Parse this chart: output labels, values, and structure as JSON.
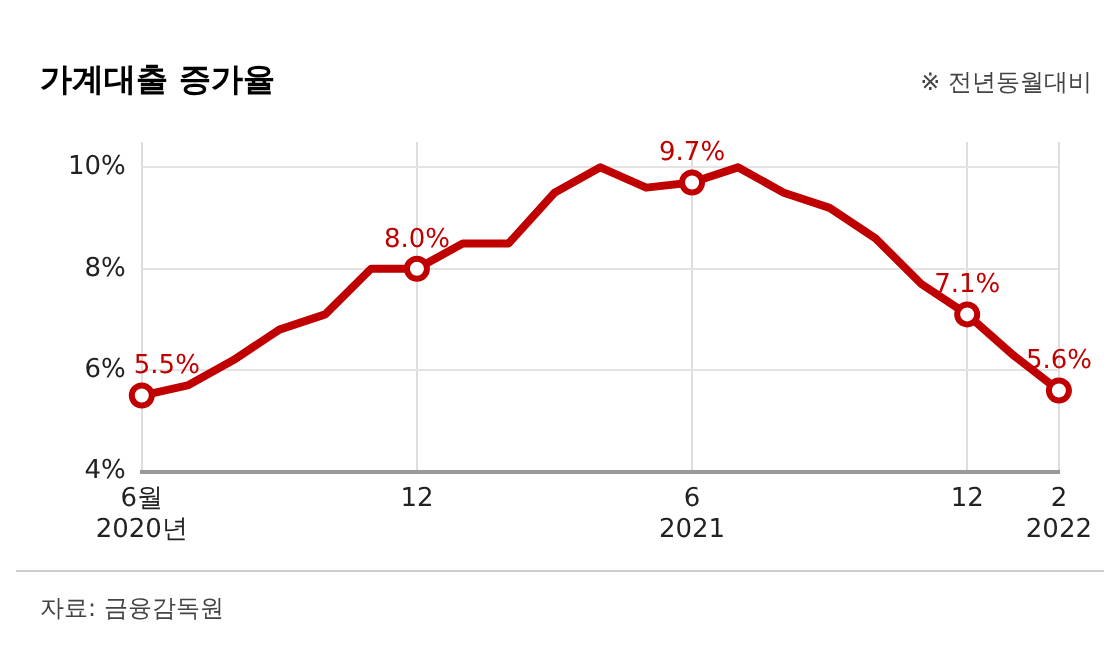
{
  "chart_data": {
    "type": "line",
    "title": "가계대출 증가율",
    "subtitle": "※ 전년동월대비",
    "categories": [
      "6월\n2020년",
      null,
      null,
      null,
      null,
      null,
      "12",
      null,
      null,
      null,
      null,
      null,
      "6\n2021",
      null,
      null,
      null,
      null,
      null,
      "12",
      null,
      "2\n2022"
    ],
    "series": [
      {
        "color": "#c00000",
        "values": [
          5.5,
          5.7,
          6.2,
          6.8,
          7.1,
          8.0,
          8.0,
          8.5,
          8.5,
          9.5,
          10.0,
          9.6,
          9.7,
          10.0,
          9.5,
          9.2,
          8.6,
          7.7,
          7.1,
          6.3,
          5.6
        ],
        "value_labels": [
          "5.5%",
          null,
          null,
          null,
          null,
          null,
          "8.0%",
          null,
          null,
          null,
          null,
          null,
          "9.7%",
          null,
          null,
          null,
          null,
          null,
          "7.1%",
          null,
          "5.6%"
        ]
      }
    ],
    "ylim": [
      4,
      10.5
    ],
    "yticks": [
      {
        "value": 4,
        "label": "4%"
      },
      {
        "value": 6,
        "label": "6%"
      },
      {
        "value": 8,
        "label": "8%"
      },
      {
        "value": 10,
        "label": "10%"
      }
    ],
    "grid": true,
    "line_style": "solid",
    "legend": false,
    "annotations": [
      "자료: 금융감독원"
    ]
  }
}
